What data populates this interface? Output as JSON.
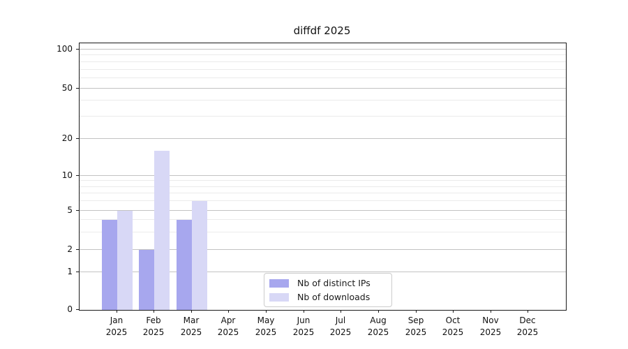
{
  "chart_data": {
    "type": "bar",
    "title": "diffdf 2025",
    "categories": [
      "Jan",
      "Feb",
      "Mar",
      "Apr",
      "May",
      "Jun",
      "Jul",
      "Aug",
      "Sep",
      "Oct",
      "Nov",
      "Dec"
    ],
    "x_tick_year": "2025",
    "series": [
      {
        "name": "Nb of distinct IPs",
        "color": "#a7a7ee",
        "values": [
          4,
          2,
          4,
          0,
          0,
          0,
          0,
          0,
          0,
          0,
          0,
          0
        ]
      },
      {
        "name": "Nb of downloads",
        "color": "#d8d8f6",
        "values": [
          5,
          16,
          6,
          0,
          0,
          0,
          0,
          0,
          0,
          0,
          0,
          0
        ]
      }
    ],
    "yticks": [
      0,
      1,
      2,
      5,
      10,
      20,
      50,
      100
    ],
    "ylim_top_value": 108,
    "axis_scale": "log-like",
    "grid": "horizontal major and minor gridlines",
    "legend_position": "inside bottom-center",
    "xlabel": "",
    "ylabel": ""
  },
  "colors": {
    "background": "#ffffff",
    "major_grid": "#c2c2c2",
    "minor_grid": "#ebebeb",
    "spine": "#1a1a1a",
    "text": "#111111",
    "legend_border": "#cccccc"
  }
}
